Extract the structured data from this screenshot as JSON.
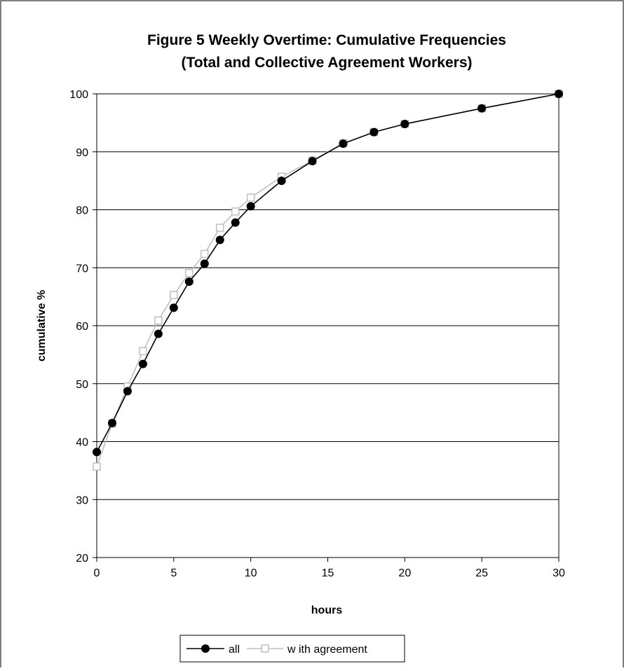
{
  "chart_data": {
    "type": "line",
    "title": "Figure 5  Weekly Overtime: Cumulative Frequencies",
    "subtitle": "(Total and Collective Agreement Workers)",
    "xlabel": "hours",
    "ylabel": "cumulative %",
    "xlim": [
      0,
      30
    ],
    "ylim": [
      20,
      100
    ],
    "xticks": [
      "0",
      "5",
      "10",
      "15",
      "20",
      "25",
      "30"
    ],
    "yticks": [
      "20",
      "30",
      "40",
      "50",
      "60",
      "70",
      "80",
      "90",
      "100"
    ],
    "grid": "horizontal",
    "legend_position": "bottom",
    "series": [
      {
        "name": "all",
        "color": "#000000",
        "marker": "filled-circle",
        "x": [
          0,
          1,
          2,
          3,
          4,
          5,
          6,
          7,
          8,
          9,
          10,
          12,
          14,
          16,
          18,
          20,
          25,
          30
        ],
        "y": [
          38.2,
          43.2,
          48.7,
          53.4,
          58.6,
          63.1,
          67.6,
          70.7,
          74.8,
          77.8,
          80.6,
          85.0,
          88.4,
          91.4,
          93.4,
          94.8,
          97.5,
          100.0
        ]
      },
      {
        "name": "w ith agreement",
        "color": "#bfbfbf",
        "marker": "open-square",
        "x": [
          0,
          1,
          2,
          3,
          4,
          5,
          6,
          7,
          8,
          9,
          10,
          12,
          14,
          16,
          18,
          20,
          25,
          30
        ],
        "y": [
          35.7,
          43.1,
          49.5,
          55.6,
          60.9,
          65.3,
          69.1,
          72.4,
          76.9,
          79.7,
          82.1,
          85.7,
          88.5,
          91.5,
          93.4,
          94.8,
          97.5,
          100.0
        ]
      }
    ]
  }
}
